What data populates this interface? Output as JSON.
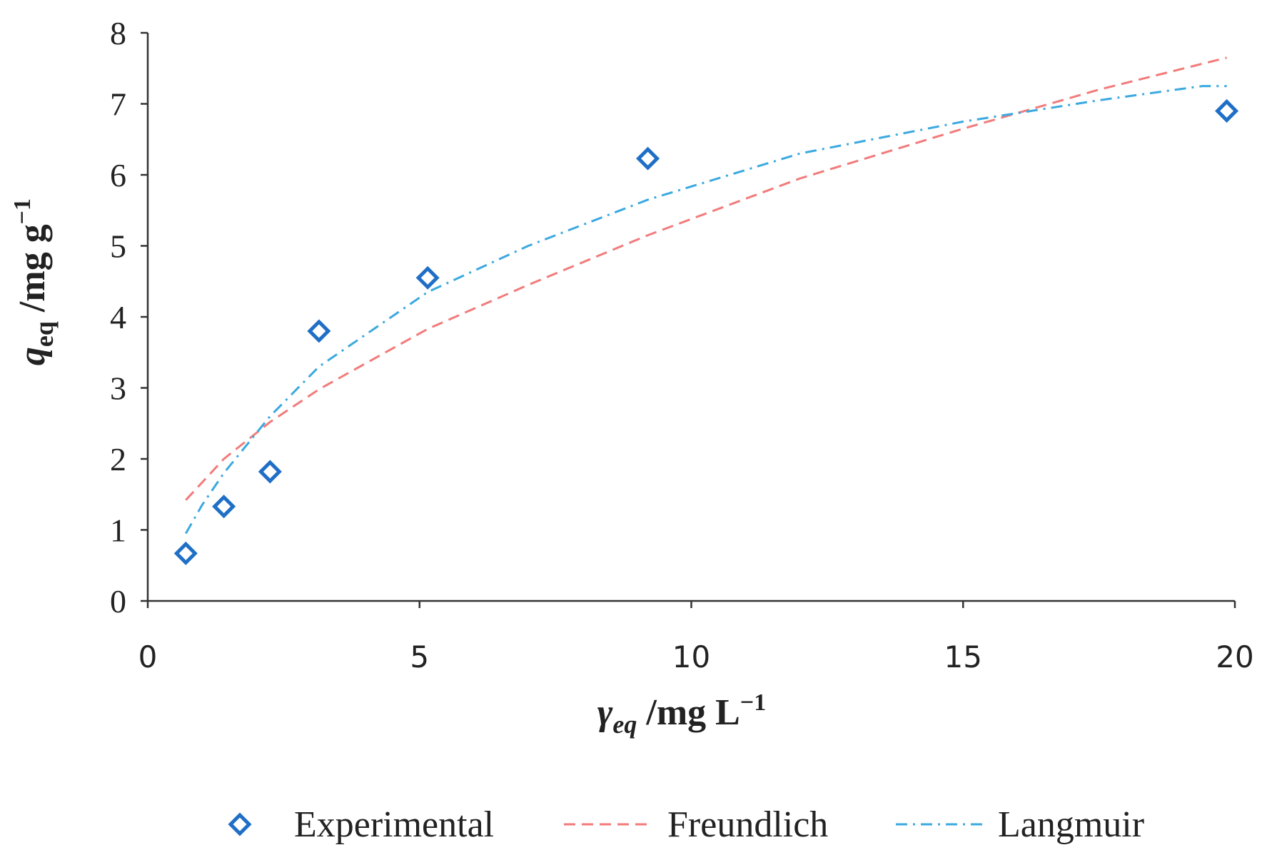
{
  "chart_data": {
    "type": "scatter",
    "title": "",
    "xlabel": {
      "symbol": "γ",
      "subscript": "eq",
      "unit": " /mg L",
      "superscript": "−1"
    },
    "ylabel": {
      "symbol": "q",
      "subscript": "eq",
      "unit": " /mg g",
      "superscript": "−1"
    },
    "xlim": [
      0,
      20
    ],
    "ylim": [
      0,
      8
    ],
    "xticks": [
      "0",
      "5",
      "10",
      "15",
      "20"
    ],
    "yticks": [
      "0",
      "1",
      "2",
      "3",
      "4",
      "5",
      "6",
      "7",
      "8"
    ],
    "grid": false,
    "legend_position": "bottom",
    "series": [
      {
        "name": "Experimental",
        "kind": "markers",
        "marker": "diamond",
        "color": "#1F6FC6",
        "x": [
          0.7,
          1.4,
          2.25,
          3.15,
          5.15,
          9.2,
          19.85
        ],
        "y": [
          0.67,
          1.33,
          1.82,
          3.8,
          4.55,
          6.23,
          6.9
        ]
      },
      {
        "name": "Freundlich",
        "kind": "line",
        "dash": "dashed",
        "color": "#F27B7B",
        "x": [
          0.7,
          1.4,
          2.25,
          3.15,
          5.15,
          7.0,
          9.2,
          12.0,
          15.0,
          17.5,
          19.85
        ],
        "y": [
          1.42,
          2.0,
          2.52,
          2.98,
          3.83,
          4.45,
          5.15,
          5.95,
          6.65,
          7.2,
          7.65
        ]
      },
      {
        "name": "Langmuir",
        "kind": "line",
        "dash": "dash-dot",
        "color": "#3BA9E0",
        "x": [
          0.7,
          1.0,
          1.4,
          2.25,
          3.15,
          5.15,
          7.0,
          9.2,
          12.0,
          15.0,
          17.5,
          19.4,
          19.85
        ],
        "y": [
          0.95,
          1.35,
          1.8,
          2.6,
          3.3,
          4.35,
          5.0,
          5.65,
          6.3,
          6.75,
          7.05,
          7.25,
          7.25
        ]
      }
    ]
  }
}
